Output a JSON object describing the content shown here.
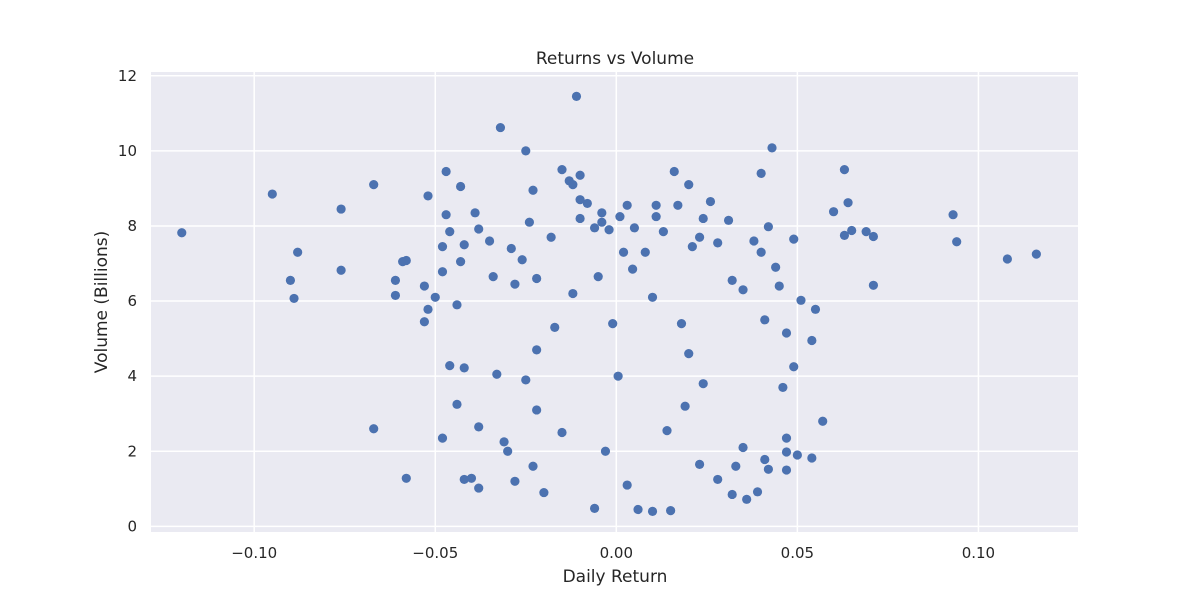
{
  "chart_data": {
    "type": "scatter",
    "title": "Returns vs Volume",
    "xlabel": "Daily Return",
    "ylabel": "Volume (Billions)",
    "xlim": [
      -0.1285,
      0.1275
    ],
    "ylim": [
      -0.15,
      12.1
    ],
    "xticks": [
      -0.1,
      -0.05,
      0.0,
      0.05,
      0.1
    ],
    "xtick_labels": [
      "−0.10",
      "−0.05",
      "0.00",
      "0.05",
      "0.10"
    ],
    "yticks": [
      0,
      2,
      4,
      6,
      8,
      10,
      12
    ],
    "ytick_labels": [
      "0",
      "2",
      "4",
      "6",
      "8",
      "10",
      "12"
    ],
    "grid": true,
    "colors": {
      "background": "#eaeaf2",
      "grid": "#ffffff",
      "marker": "#4c72b0"
    },
    "points": [
      [
        -0.12,
        7.82
      ],
      [
        -0.095,
        8.85
      ],
      [
        -0.09,
        6.55
      ],
      [
        -0.089,
        6.07
      ],
      [
        -0.088,
        7.3
      ],
      [
        -0.076,
        8.45
      ],
      [
        -0.076,
        6.82
      ],
      [
        -0.067,
        9.1
      ],
      [
        -0.067,
        2.6
      ],
      [
        -0.061,
        6.55
      ],
      [
        -0.061,
        6.15
      ],
      [
        -0.059,
        7.05
      ],
      [
        -0.058,
        7.08
      ],
      [
        -0.058,
        1.28
      ],
      [
        -0.052,
        8.8
      ],
      [
        -0.053,
        5.45
      ],
      [
        -0.052,
        5.78
      ],
      [
        -0.05,
        6.1
      ],
      [
        -0.053,
        6.4
      ],
      [
        -0.048,
        6.78
      ],
      [
        -0.048,
        7.45
      ],
      [
        -0.048,
        2.35
      ],
      [
        -0.047,
        9.45
      ],
      [
        -0.047,
        8.3
      ],
      [
        -0.046,
        7.85
      ],
      [
        -0.046,
        4.28
      ],
      [
        -0.044,
        3.25
      ],
      [
        -0.044,
        5.9
      ],
      [
        -0.043,
        9.05
      ],
      [
        -0.043,
        7.05
      ],
      [
        -0.042,
        7.5
      ],
      [
        -0.042,
        4.22
      ],
      [
        -0.042,
        1.25
      ],
      [
        -0.04,
        1.28
      ],
      [
        -0.039,
        8.35
      ],
      [
        -0.038,
        7.92
      ],
      [
        -0.038,
        2.65
      ],
      [
        -0.038,
        1.02
      ],
      [
        -0.035,
        7.6
      ],
      [
        -0.034,
        6.65
      ],
      [
        -0.033,
        4.05
      ],
      [
        -0.032,
        10.62
      ],
      [
        -0.031,
        2.25
      ],
      [
        -0.03,
        2.0
      ],
      [
        -0.029,
        7.4
      ],
      [
        -0.028,
        6.45
      ],
      [
        -0.026,
        7.1
      ],
      [
        -0.025,
        10.0
      ],
      [
        -0.023,
        8.95
      ],
      [
        -0.024,
        8.1
      ],
      [
        -0.022,
        6.6
      ],
      [
        -0.018,
        7.7
      ],
      [
        -0.015,
        9.5
      ],
      [
        -0.013,
        9.2
      ],
      [
        -0.012,
        9.1
      ],
      [
        -0.011,
        11.45
      ],
      [
        -0.01,
        9.35
      ],
      [
        -0.01,
        8.7
      ],
      [
        -0.01,
        8.2
      ],
      [
        -0.008,
        8.6
      ],
      [
        -0.006,
        7.95
      ],
      [
        -0.004,
        8.35
      ],
      [
        -0.004,
        8.1
      ],
      [
        -0.002,
        7.9
      ],
      [
        0.001,
        8.25
      ],
      [
        0.002,
        7.3
      ],
      [
        0.003,
        8.55
      ],
      [
        0.005,
        7.95
      ],
      [
        0.008,
        7.3
      ],
      [
        0.011,
        8.55
      ],
      [
        0.011,
        8.25
      ],
      [
        0.013,
        7.85
      ],
      [
        0.016,
        9.45
      ],
      [
        0.017,
        8.55
      ],
      [
        0.02,
        9.1
      ],
      [
        0.021,
        7.45
      ],
      [
        0.023,
        7.7
      ],
      [
        0.024,
        8.2
      ],
      [
        0.026,
        8.65
      ],
      [
        0.028,
        7.55
      ],
      [
        0.031,
        8.15
      ],
      [
        0.032,
        6.55
      ],
      [
        0.035,
        6.3
      ],
      [
        0.038,
        7.6
      ],
      [
        0.04,
        9.4
      ],
      [
        0.04,
        7.3
      ],
      [
        0.041,
        5.5
      ],
      [
        0.042,
        7.98
      ],
      [
        0.043,
        10.08
      ],
      [
        0.044,
        6.9
      ],
      [
        0.045,
        6.4
      ],
      [
        0.047,
        5.15
      ],
      [
        0.049,
        7.65
      ],
      [
        0.049,
        4.25
      ],
      [
        0.046,
        3.7
      ],
      [
        0.051,
        6.02
      ],
      [
        0.054,
        4.95
      ],
      [
        0.055,
        5.78
      ],
      [
        0.057,
        2.8
      ],
      [
        0.047,
        2.35
      ],
      [
        0.047,
        1.98
      ],
      [
        0.05,
        1.9
      ],
      [
        0.054,
        1.82
      ],
      [
        0.047,
        1.5
      ],
      [
        0.06,
        8.38
      ],
      [
        0.063,
        9.5
      ],
      [
        0.064,
        8.62
      ],
      [
        0.063,
        7.75
      ],
      [
        0.065,
        7.88
      ],
      [
        0.069,
        7.85
      ],
      [
        0.071,
        7.72
      ],
      [
        0.071,
        6.42
      ],
      [
        0.093,
        8.3
      ],
      [
        0.094,
        7.58
      ],
      [
        0.108,
        7.12
      ],
      [
        0.116,
        7.25
      ],
      [
        0.035,
        2.1
      ],
      [
        0.033,
        1.6
      ],
      [
        0.032,
        0.85
      ],
      [
        0.036,
        0.72
      ],
      [
        0.039,
        0.92
      ],
      [
        0.042,
        1.52
      ],
      [
        0.041,
        1.78
      ],
      [
        -0.006,
        0.48
      ],
      [
        0.006,
        0.45
      ],
      [
        0.01,
        0.4
      ],
      [
        0.015,
        0.42
      ],
      [
        -0.02,
        0.9
      ],
      [
        -0.005,
        6.65
      ],
      [
        0.0045,
        6.85
      ],
      [
        -0.012,
        6.2
      ],
      [
        0.01,
        6.1
      ],
      [
        -0.017,
        5.3
      ],
      [
        0.018,
        5.4
      ],
      [
        -0.022,
        4.7
      ],
      [
        0.02,
        4.6
      ],
      [
        -0.025,
        3.9
      ],
      [
        0.024,
        3.8
      ],
      [
        -0.022,
        3.1
      ],
      [
        0.019,
        3.2
      ],
      [
        -0.015,
        2.5
      ],
      [
        0.014,
        2.55
      ],
      [
        -0.023,
        1.6
      ],
      [
        0.023,
        1.65
      ],
      [
        -0.028,
        1.2
      ],
      [
        0.028,
        1.25
      ],
      [
        -0.001,
        5.4
      ],
      [
        0.0005,
        4.0
      ],
      [
        -0.003,
        2.0
      ],
      [
        0.003,
        1.1
      ]
    ]
  }
}
